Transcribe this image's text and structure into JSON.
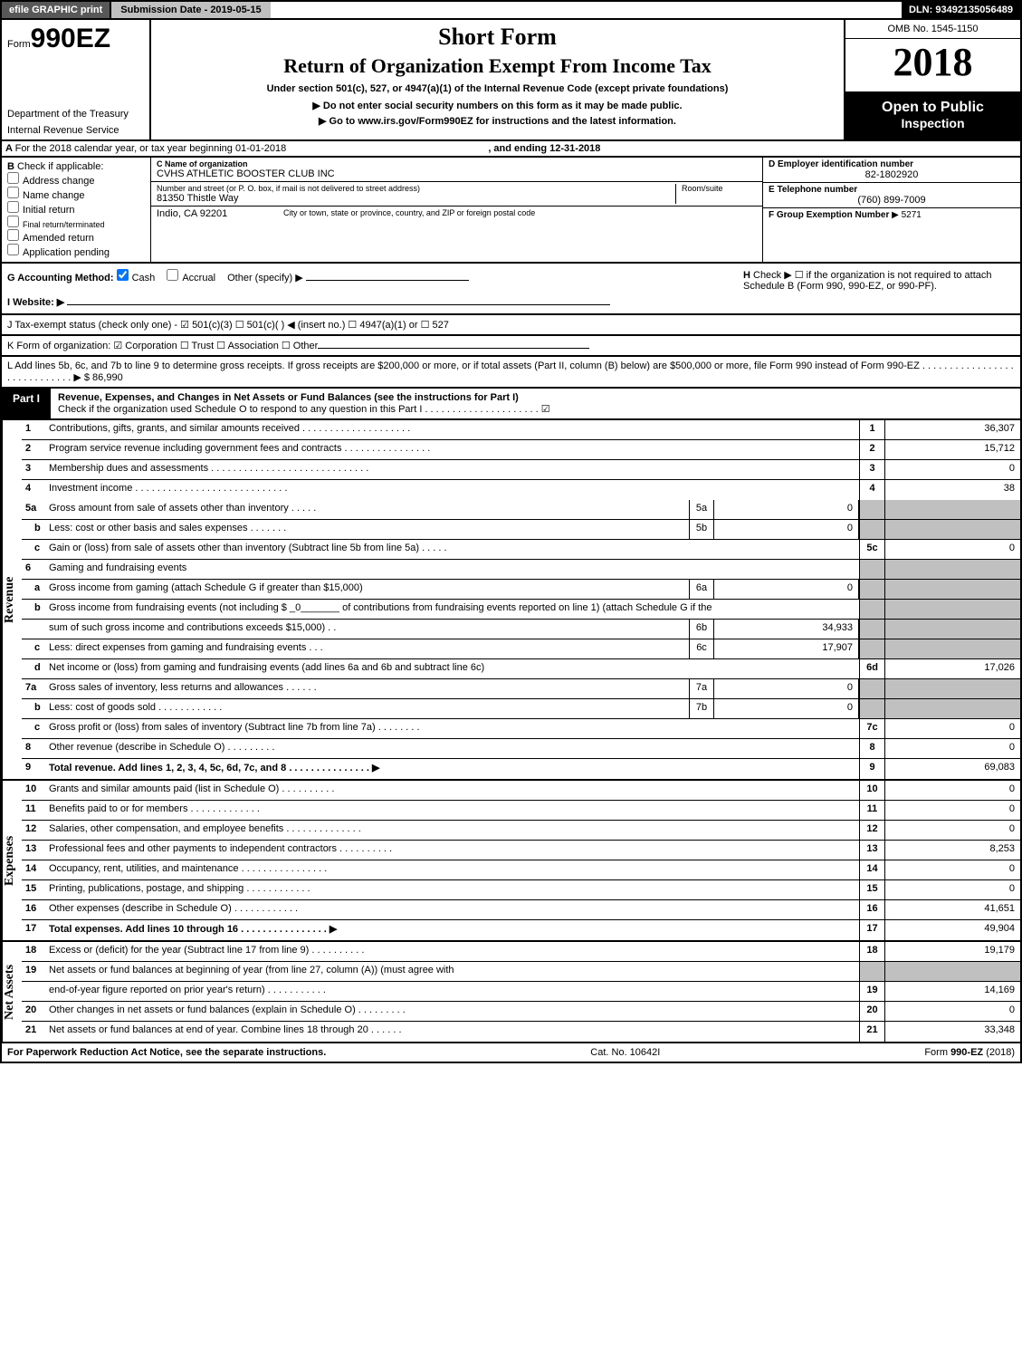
{
  "top": {
    "efile": "efile GRAPHIC print",
    "submission_label": "Submission Date - 2019-05-15",
    "dln_label": "DLN: 93492135056489"
  },
  "header": {
    "form_prefix": "Form",
    "form_number": "990EZ",
    "short_form": "Short Form",
    "return_title": "Return of Organization Exempt From Income Tax",
    "under_section": "Under section 501(c), 527, or 4947(a)(1) of the Internal Revenue Code (except private foundations)",
    "dept1": "Department of the Treasury",
    "dept2": "Internal Revenue Service",
    "no_ssn": "▶ Do not enter social security numbers on this form as it may be made public.",
    "goto": "▶ Go to www.irs.gov/Form990EZ for instructions and the latest information.",
    "omb": "OMB No. 1545-1150",
    "year": "2018",
    "open": "Open to Public",
    "inspection": "Inspection"
  },
  "a": {
    "text_pre": "For the 2018 calendar year, or tax year beginning 01-01-2018",
    "text_mid": ", and ending 12-31-2018"
  },
  "b": {
    "label": "Check if applicable:",
    "items": [
      "Address change",
      "Name change",
      "Initial return",
      "Final return/terminated",
      "Amended return",
      "Application pending"
    ]
  },
  "c": {
    "label": "C Name of organization",
    "name": "CVHS ATHLETIC BOOSTER CLUB INC",
    "addr_label": "Number and street (or P. O. box, if mail is not delivered to street address)",
    "addr": "81350 Thistle Way",
    "room_label": "Room/suite",
    "city_label": "City or town, state or province, country, and ZIP or foreign postal code",
    "city": "Indio, CA  92201"
  },
  "d": {
    "label": "D Employer identification number",
    "ein": "82-1802920",
    "e_label": "E Telephone number",
    "phone": "(760) 899-7009",
    "f_label": "F Group Exemption Number",
    "f_val": "▶ 5271"
  },
  "g": {
    "label": "G Accounting Method:",
    "cash": "Cash",
    "accrual": "Accrual",
    "other": "Other (specify) ▶"
  },
  "h": {
    "text": "Check ▶ ☐ if the organization is not required to attach Schedule B (Form 990, 990-EZ, or 990-PF)."
  },
  "i": {
    "label": "I Website: ▶"
  },
  "j": {
    "text": "J Tax-exempt status (check only one) - ☑ 501(c)(3) ☐ 501(c)( ) ◀ (insert no.) ☐ 4947(a)(1) or ☐ 527"
  },
  "k": {
    "text": "K Form of organization: ☑ Corporation  ☐ Trust  ☐ Association  ☐ Other"
  },
  "l": {
    "text": "L Add lines 5b, 6c, and 7b to line 9 to determine gross receipts. If gross receipts are $200,000 or more, or if total assets (Part II, column (B) below) are $500,000 or more, file Form 990 instead of Form 990-EZ  .  .  .  .  .  .  .  .  .  .  .  .  .  .  .  .  .  .  .  .  .  .  .  .  .  .  .  .  .  ▶ $ 86,990"
  },
  "part1": {
    "label": "Part I",
    "title": "Revenue, Expenses, and Changes in Net Assets or Fund Balances (see the instructions for Part I)",
    "check_line": "Check if the organization used Schedule O to respond to any question in this Part I .  .  .  .  .  .  .  .  .  .  .  .  .  .  .  .  .  .  .  .  .  ☑"
  },
  "revenue": [
    {
      "n": "1",
      "d": "Contributions, gifts, grants, and similar amounts received  .  .  .  .  .  .  .  .  .  .  .  .  .  .  .  .  .  .  .  .",
      "num": "1",
      "v": "36,307"
    },
    {
      "n": "2",
      "d": "Program service revenue including government fees and contracts  .  .  .  .  .  .  .  .  .  .  .  .  .  .  .  .",
      "num": "2",
      "v": "15,712"
    },
    {
      "n": "3",
      "d": "Membership dues and assessments  .  .  .  .  .  .  .  .  .  .  .  .  .  .  .  .  .  .  .  .  .  .  .  .  .  .  .  .  .",
      "num": "3",
      "v": "0"
    },
    {
      "n": "4",
      "d": "Investment income  .  .  .  .  .  .  .  .  .  .  .  .  .  .  .  .  .  .  .  .  .  .  .  .  .  .  .  .",
      "num": "4",
      "v": "38"
    }
  ],
  "r5a": {
    "n": "5a",
    "d": "Gross amount from sale of assets other than inventory  .  .  .  .  .",
    "mn": "5a",
    "mv": "0"
  },
  "r5b": {
    "n": "b",
    "d": "Less: cost or other basis and sales expenses  .  .  .  .  .  .  .",
    "mn": "5b",
    "mv": "0"
  },
  "r5c": {
    "n": "c",
    "d": "Gain or (loss) from sale of assets other than inventory (Subtract line 5b from line 5a)          .  .  .  .  .",
    "num": "5c",
    "v": "0"
  },
  "r6": {
    "n": "6",
    "d": "Gaming and fundraising events"
  },
  "r6a": {
    "n": "a",
    "d": "Gross income from gaming (attach Schedule G if greater than $15,000)",
    "mn": "6a",
    "mv": "0"
  },
  "r6b": {
    "n": "b",
    "d": "Gross income from fundraising events (not including $ _0_______ of contributions from fundraising events reported on line 1) (attach Schedule G if the"
  },
  "r6b2": {
    "d": "sum of such gross income and contributions exceeds $15,000)          .  .",
    "mn": "6b",
    "mv": "34,933"
  },
  "r6c": {
    "n": "c",
    "d": "Less: direct expenses from gaming and fundraising events          .  .  .",
    "mn": "6c",
    "mv": "17,907"
  },
  "r6d": {
    "n": "d",
    "d": "Net income or (loss) from gaming and fundraising events (add lines 6a and 6b and subtract line 6c)",
    "num": "6d",
    "v": "17,026"
  },
  "r7a": {
    "n": "7a",
    "d": "Gross sales of inventory, less returns and allowances          .  .  .  .  .  .",
    "mn": "7a",
    "mv": "0"
  },
  "r7b": {
    "n": "b",
    "d": "Less: cost of goods sold                    .  .  .  .  .  .  .  .  .  .  .  .",
    "mn": "7b",
    "mv": "0"
  },
  "r7c": {
    "n": "c",
    "d": "Gross profit or (loss) from sales of inventory (Subtract line 7b from line 7a)          .  .  .  .  .  .  .  .",
    "num": "7c",
    "v": "0"
  },
  "r8": {
    "n": "8",
    "d": "Other revenue (describe in Schedule O)                    .  .  .  .  .  .  .  .  .",
    "num": "8",
    "v": "0"
  },
  "r9": {
    "n": "9",
    "d": "Total revenue. Add lines 1, 2, 3, 4, 5c, 6d, 7c, and 8          .  .  .  .  .  .  .  .  .  .  .  .  .  .  .   ▶",
    "num": "9",
    "v": "69,083"
  },
  "expenses": [
    {
      "n": "10",
      "d": "Grants and similar amounts paid (list in Schedule O)                    .  .  .  .  .  .  .  .  .  .",
      "num": "10",
      "v": "0"
    },
    {
      "n": "11",
      "d": "Benefits paid to or for members                    .  .  .  .  .  .  .  .  .  .  .  .  .",
      "num": "11",
      "v": "0"
    },
    {
      "n": "12",
      "d": "Salaries, other compensation, and employee benefits          .  .  .  .  .  .  .  .  .  .  .  .  .  .",
      "num": "12",
      "v": "0"
    },
    {
      "n": "13",
      "d": "Professional fees and other payments to independent contractors          .  .  .  .  .  .  .  .  .  .",
      "num": "13",
      "v": "8,253"
    },
    {
      "n": "14",
      "d": "Occupancy, rent, utilities, and maintenance          .  .  .  .  .  .  .  .  .  .  .  .  .  .  .  .",
      "num": "14",
      "v": "0"
    },
    {
      "n": "15",
      "d": "Printing, publications, postage, and shipping                    .  .  .  .  .  .  .  .  .  .  .  .",
      "num": "15",
      "v": "0"
    },
    {
      "n": "16",
      "d": "Other expenses (describe in Schedule O)                    .  .  .  .  .  .  .  .  .  .  .  .",
      "num": "16",
      "v": "41,651"
    },
    {
      "n": "17",
      "d": "Total expenses. Add lines 10 through 16          .  .  .  .  .  .  .  .  .  .  .  .  .  .  .  .  ▶",
      "num": "17",
      "v": "49,904"
    }
  ],
  "netassets": [
    {
      "n": "18",
      "d": "Excess or (deficit) for the year (Subtract line 17 from line 9)                    .  .  .  .  .  .  .  .  .  .",
      "num": "18",
      "v": "19,179"
    },
    {
      "n": "19",
      "d": "Net assets or fund balances at beginning of year (from line 27, column (A)) (must agree with",
      "num": "",
      "v": ""
    },
    {
      "n": "",
      "d": "end-of-year figure reported on prior year's return)                    .  .  .  .  .  .  .  .  .  .  .",
      "num": "19",
      "v": "14,169"
    },
    {
      "n": "20",
      "d": "Other changes in net assets or fund balances (explain in Schedule O)          .  .  .  .  .  .  .  .  .",
      "num": "20",
      "v": "0"
    },
    {
      "n": "21",
      "d": "Net assets or fund balances at end of year. Combine lines 18 through 20          .  .  .  .  .  .",
      "num": "21",
      "v": "33,348"
    }
  ],
  "sides": {
    "rev": "Revenue",
    "exp": "Expenses",
    "na": "Net Assets"
  },
  "footer": {
    "pra": "For Paperwork Reduction Act Notice, see the separate instructions.",
    "cat": "Cat. No. 10642I",
    "form": "Form 990-EZ (2018)"
  },
  "colors": {
    "black": "#000000",
    "grey": "#c0c0c0",
    "darkgrey": "#585858"
  }
}
